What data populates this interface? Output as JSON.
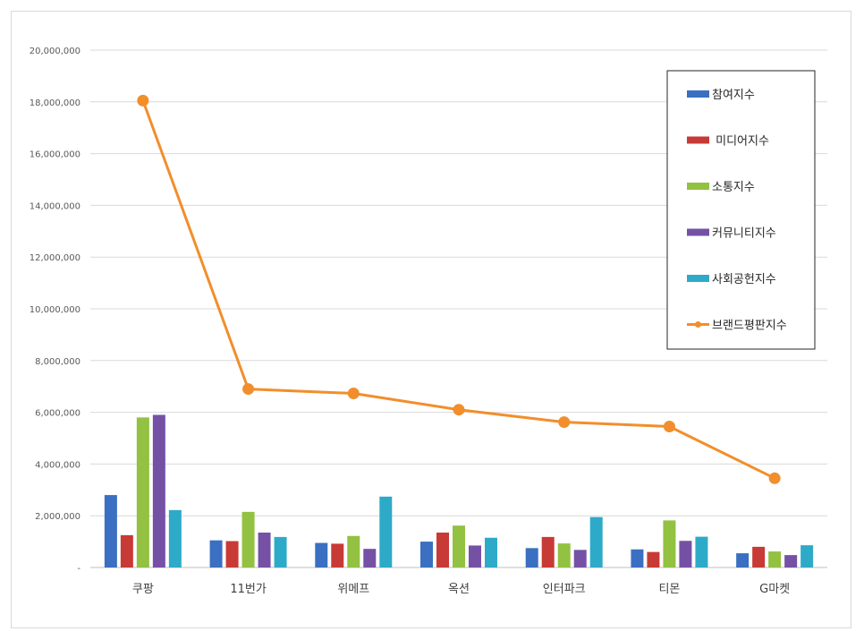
{
  "chart_data": {
    "type": "bar",
    "categories": [
      "쿠팡",
      "11번가",
      "위메프",
      "옥션",
      "인터파크",
      "티몬",
      "G마켓"
    ],
    "series": [
      {
        "name": "참여지수",
        "type": "bar",
        "color": "#3a6fc2",
        "values": [
          2800000,
          1050000,
          950000,
          1000000,
          750000,
          700000,
          550000
        ]
      },
      {
        "name": " 미디어지수",
        "type": "bar",
        "color": "#c83a36",
        "values": [
          1250000,
          1020000,
          920000,
          1350000,
          1180000,
          600000,
          800000
        ]
      },
      {
        "name": "소통지수",
        "type": "bar",
        "color": "#93c142",
        "values": [
          5800000,
          2150000,
          1220000,
          1620000,
          930000,
          1820000,
          620000
        ]
      },
      {
        "name": "커뮤니티지수",
        "type": "bar",
        "color": "#7551a6",
        "values": [
          5900000,
          1350000,
          720000,
          850000,
          680000,
          1030000,
          480000
        ]
      },
      {
        "name": "사회공헌지수",
        "type": "bar",
        "color": "#2eaac9",
        "values": [
          2220000,
          1180000,
          2740000,
          1150000,
          1950000,
          1190000,
          860000
        ]
      },
      {
        "name": "브랜드평판지수",
        "type": "line",
        "color": "#f28e2b",
        "values": [
          18050000,
          6900000,
          6730000,
          6100000,
          5620000,
          5450000,
          3450000
        ]
      }
    ],
    "ylim": [
      0,
      20000000
    ],
    "yticks": [
      "-",
      "2,000,000",
      "4,000,000",
      "6,000,000",
      "8,000,000",
      "10,000,000",
      "12,000,000",
      "14,000,000",
      "16,000,000",
      "18,000,000",
      "20,000,000"
    ],
    "grid": true,
    "legend_position": "right"
  }
}
